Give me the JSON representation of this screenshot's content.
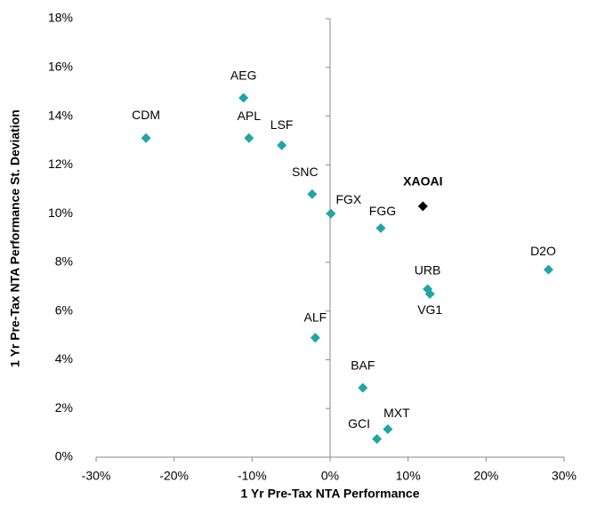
{
  "chart_data": {
    "type": "scatter",
    "xlabel": "1 Yr Pre-Tax NTA Performance",
    "ylabel": "1 Yr Pre-Tax NTA Performance St. Deviation",
    "xlim": [
      -30,
      30
    ],
    "xticks": [
      {
        "value": -30,
        "label": "-30%"
      },
      {
        "value": -20,
        "label": "-20%"
      },
      {
        "value": -10,
        "label": "-10%"
      },
      {
        "value": 0,
        "label": "0%"
      },
      {
        "value": 10,
        "label": "10%"
      },
      {
        "value": 20,
        "label": "20%"
      },
      {
        "value": 30,
        "label": "30%"
      }
    ],
    "ylim": [
      0,
      18
    ],
    "yticks": [
      {
        "value": 0,
        "label": "0%"
      },
      {
        "value": 2,
        "label": "2%"
      },
      {
        "value": 4,
        "label": "4%"
      },
      {
        "value": 6,
        "label": "6%"
      },
      {
        "value": 8,
        "label": "8%"
      },
      {
        "value": 10,
        "label": "10%"
      },
      {
        "value": 12,
        "label": "12%"
      },
      {
        "value": 14,
        "label": "14%"
      },
      {
        "value": 16,
        "label": "16%"
      },
      {
        "value": 18,
        "label": "18%"
      }
    ],
    "series": [
      {
        "color": "#1fa5a8",
        "bold": false,
        "labels": [
          "CDM",
          "AEG",
          "APL",
          "LSF",
          "SNC",
          "FGX",
          "FGG",
          "D2O",
          "URB",
          "VG1",
          "ALF",
          "BAF",
          "MXT",
          "GCI"
        ],
        "x": [
          -23.6,
          -11.1,
          -10.4,
          -6.2,
          -2.3,
          0.1,
          6.5,
          28.0,
          12.5,
          12.8,
          -1.9,
          4.2,
          7.4,
          6.0
        ],
        "y": [
          13.1,
          14.75,
          13.1,
          12.8,
          10.8,
          10.0,
          9.4,
          7.7,
          6.9,
          6.7,
          4.9,
          2.85,
          1.15,
          0.75
        ]
      },
      {
        "color": "#000000",
        "bold": true,
        "labels": [
          "XAOAI"
        ],
        "x": [
          11.9
        ],
        "y": [
          10.3
        ]
      }
    ]
  }
}
